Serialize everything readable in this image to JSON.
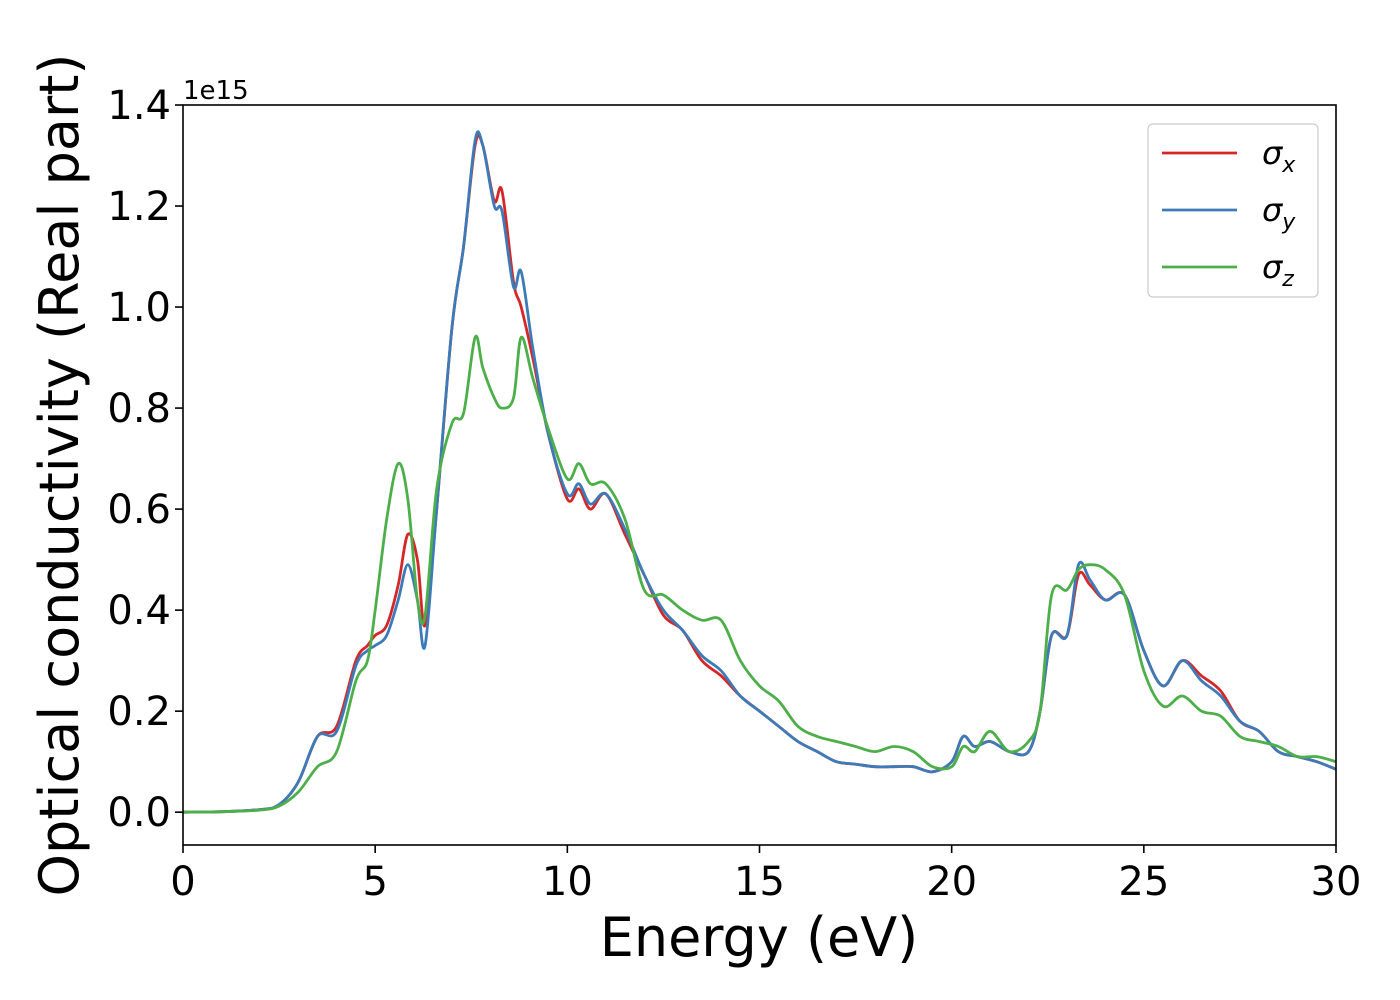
{
  "chart_data": {
    "type": "line",
    "title": "",
    "xlabel": "Energy (eV)",
    "ylabel": "Optical conductivity (Real part)",
    "y_offset_label": "1e15",
    "xlim": [
      0,
      30
    ],
    "ylim": [
      -0.065,
      1.4
    ],
    "xticks": [
      "0",
      "5",
      "10",
      "15",
      "20",
      "25",
      "30"
    ],
    "yticks": [
      "0.0",
      "0.2",
      "0.4",
      "0.6",
      "0.8",
      "1.0",
      "1.2",
      "1.4"
    ],
    "grid": false,
    "legend_position": "top-right",
    "series": [
      {
        "name": "σ",
        "subscript": "x",
        "color": "#d62728",
        "x": [
          0,
          1,
          2,
          2.5,
          3,
          3.5,
          4,
          4.5,
          4.8,
          5,
          5.3,
          5.6,
          5.85,
          6.1,
          6.3,
          6.6,
          7,
          7.3,
          7.6,
          7.8,
          8.1,
          8.3,
          8.6,
          8.8,
          9.1,
          9.5,
          10,
          10.3,
          10.6,
          11,
          11.5,
          12,
          12.5,
          13,
          13.5,
          14,
          14.5,
          15,
          15.5,
          16,
          16.5,
          17,
          17.5,
          18,
          18.5,
          19,
          19.5,
          20,
          20.3,
          20.6,
          21,
          21.5,
          22,
          22.3,
          22.6,
          23,
          23.3,
          23.6,
          24,
          24.5,
          25,
          25.5,
          26,
          26.5,
          27,
          27.5,
          28,
          28.5,
          29,
          29.5,
          30
        ],
        "values": [
          0,
          0.001,
          0.005,
          0.015,
          0.06,
          0.15,
          0.17,
          0.3,
          0.33,
          0.35,
          0.37,
          0.45,
          0.55,
          0.5,
          0.37,
          0.6,
          0.96,
          1.12,
          1.32,
          1.32,
          1.21,
          1.23,
          1.05,
          1.0,
          0.9,
          0.75,
          0.62,
          0.64,
          0.6,
          0.63,
          0.55,
          0.47,
          0.39,
          0.36,
          0.3,
          0.27,
          0.23,
          0.2,
          0.17,
          0.14,
          0.12,
          0.1,
          0.095,
          0.09,
          0.09,
          0.09,
          0.08,
          0.1,
          0.15,
          0.13,
          0.14,
          0.12,
          0.12,
          0.2,
          0.35,
          0.35,
          0.47,
          0.45,
          0.42,
          0.43,
          0.32,
          0.25,
          0.3,
          0.27,
          0.24,
          0.18,
          0.16,
          0.12,
          0.11,
          0.1,
          0.085
        ]
      },
      {
        "name": "σ",
        "subscript": "y",
        "color": "#3d7bb8",
        "x": [
          0,
          1,
          2,
          2.5,
          3,
          3.5,
          4,
          4.5,
          4.8,
          5,
          5.3,
          5.6,
          5.85,
          6.1,
          6.3,
          6.6,
          7,
          7.3,
          7.6,
          7.8,
          8.1,
          8.3,
          8.6,
          8.8,
          9.1,
          9.5,
          10,
          10.3,
          10.6,
          11,
          11.5,
          12,
          12.5,
          13,
          13.5,
          14,
          14.5,
          15,
          15.5,
          16,
          16.5,
          17,
          17.5,
          18,
          18.5,
          19,
          19.5,
          20,
          20.3,
          20.6,
          21,
          21.5,
          22,
          22.3,
          22.6,
          23,
          23.3,
          23.6,
          24,
          24.5,
          25,
          25.5,
          26,
          26.5,
          27,
          27.5,
          28,
          28.5,
          29,
          29.5,
          30
        ],
        "values": [
          0,
          0.001,
          0.005,
          0.015,
          0.06,
          0.15,
          0.16,
          0.29,
          0.32,
          0.33,
          0.35,
          0.42,
          0.49,
          0.42,
          0.33,
          0.6,
          0.96,
          1.12,
          1.33,
          1.32,
          1.2,
          1.19,
          1.04,
          1.07,
          0.92,
          0.75,
          0.63,
          0.65,
          0.61,
          0.63,
          0.56,
          0.47,
          0.4,
          0.36,
          0.31,
          0.28,
          0.23,
          0.2,
          0.17,
          0.14,
          0.12,
          0.1,
          0.095,
          0.09,
          0.09,
          0.09,
          0.08,
          0.1,
          0.15,
          0.13,
          0.14,
          0.12,
          0.12,
          0.2,
          0.35,
          0.35,
          0.49,
          0.46,
          0.42,
          0.43,
          0.32,
          0.25,
          0.3,
          0.26,
          0.23,
          0.18,
          0.16,
          0.12,
          0.11,
          0.1,
          0.085
        ]
      },
      {
        "name": "σ",
        "subscript": "z",
        "color": "#4daf4a",
        "x": [
          0,
          1,
          2,
          2.5,
          3,
          3.5,
          4,
          4.5,
          4.8,
          5,
          5.3,
          5.6,
          5.85,
          6.1,
          6.3,
          6.6,
          7,
          7.3,
          7.6,
          7.8,
          8.1,
          8.3,
          8.6,
          8.8,
          9.1,
          9.5,
          10,
          10.3,
          10.6,
          11,
          11.5,
          12,
          12.5,
          13,
          13.5,
          14,
          14.5,
          15,
          15.5,
          16,
          16.5,
          17,
          17.5,
          18,
          18.5,
          19,
          19.5,
          20,
          20.3,
          20.6,
          21,
          21.5,
          22,
          22.3,
          22.6,
          23,
          23.3,
          23.6,
          24,
          24.5,
          25,
          25.5,
          26,
          26.5,
          27,
          27.5,
          28,
          28.5,
          29,
          29.5,
          30
        ],
        "values": [
          0,
          0.001,
          0.004,
          0.012,
          0.04,
          0.09,
          0.12,
          0.26,
          0.3,
          0.4,
          0.58,
          0.69,
          0.62,
          0.42,
          0.39,
          0.64,
          0.77,
          0.79,
          0.94,
          0.88,
          0.82,
          0.8,
          0.82,
          0.94,
          0.86,
          0.76,
          0.66,
          0.69,
          0.65,
          0.65,
          0.58,
          0.44,
          0.43,
          0.4,
          0.38,
          0.38,
          0.3,
          0.25,
          0.22,
          0.17,
          0.15,
          0.14,
          0.13,
          0.12,
          0.13,
          0.12,
          0.09,
          0.09,
          0.13,
          0.12,
          0.16,
          0.12,
          0.14,
          0.2,
          0.43,
          0.44,
          0.48,
          0.49,
          0.48,
          0.43,
          0.28,
          0.21,
          0.23,
          0.2,
          0.19,
          0.15,
          0.14,
          0.13,
          0.11,
          0.11,
          0.1
        ]
      }
    ]
  }
}
